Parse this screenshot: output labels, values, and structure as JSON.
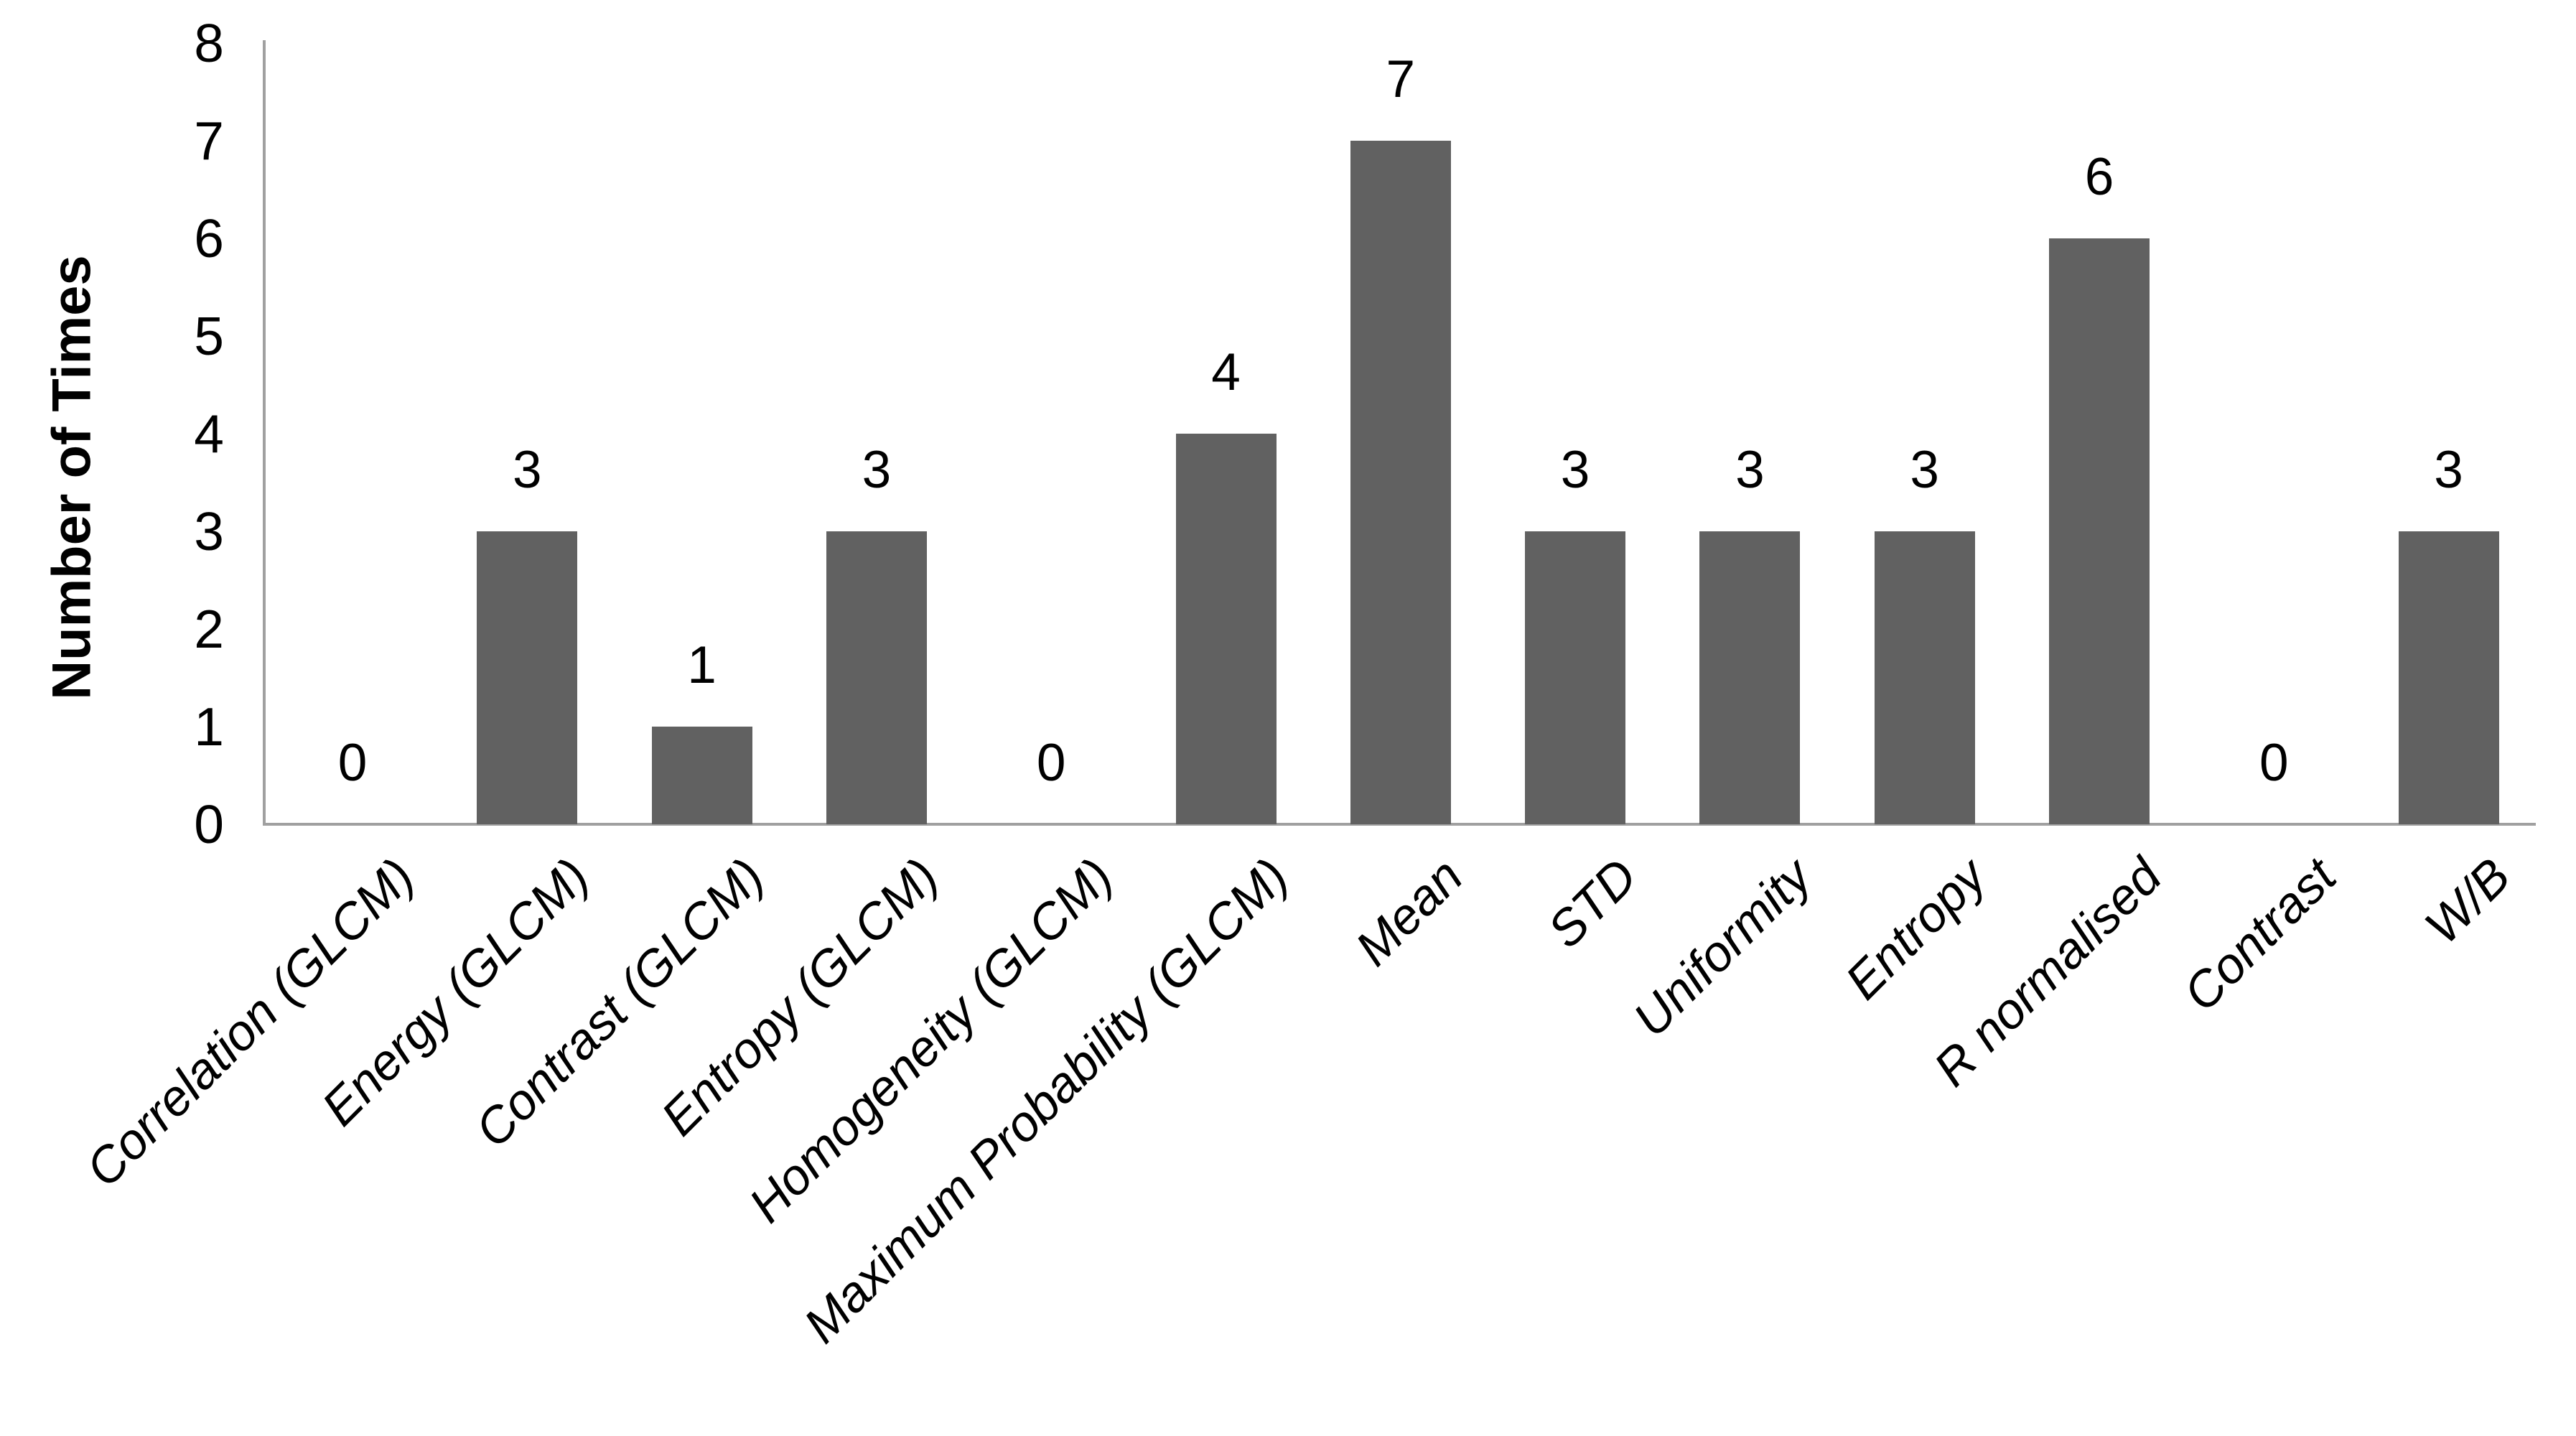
{
  "chart_data": {
    "type": "bar",
    "title": "",
    "xlabel": "",
    "ylabel": "Number of Times",
    "ylim": [
      0,
      8
    ],
    "yticks": [
      0,
      1,
      2,
      3,
      4,
      5,
      6,
      7,
      8
    ],
    "grid": false,
    "legend": null,
    "data_labels_shown": true,
    "bar_color": "#616161",
    "axis_color": "#A0A0A0",
    "text_color": "#000000",
    "categories": [
      "Correlation (GLCM)",
      "Energy (GLCM)",
      "Contrast (GLCM)",
      "Entropy (GLCM)",
      "Homogeneity (GLCM)",
      "Maximum Probability (GLCM)",
      "Mean",
      "STD",
      "Uniformity",
      "Entropy",
      "R normalised",
      "Contrast",
      "W/B"
    ],
    "values": [
      0,
      3,
      1,
      3,
      0,
      4,
      7,
      3,
      3,
      3,
      6,
      0,
      3
    ]
  }
}
